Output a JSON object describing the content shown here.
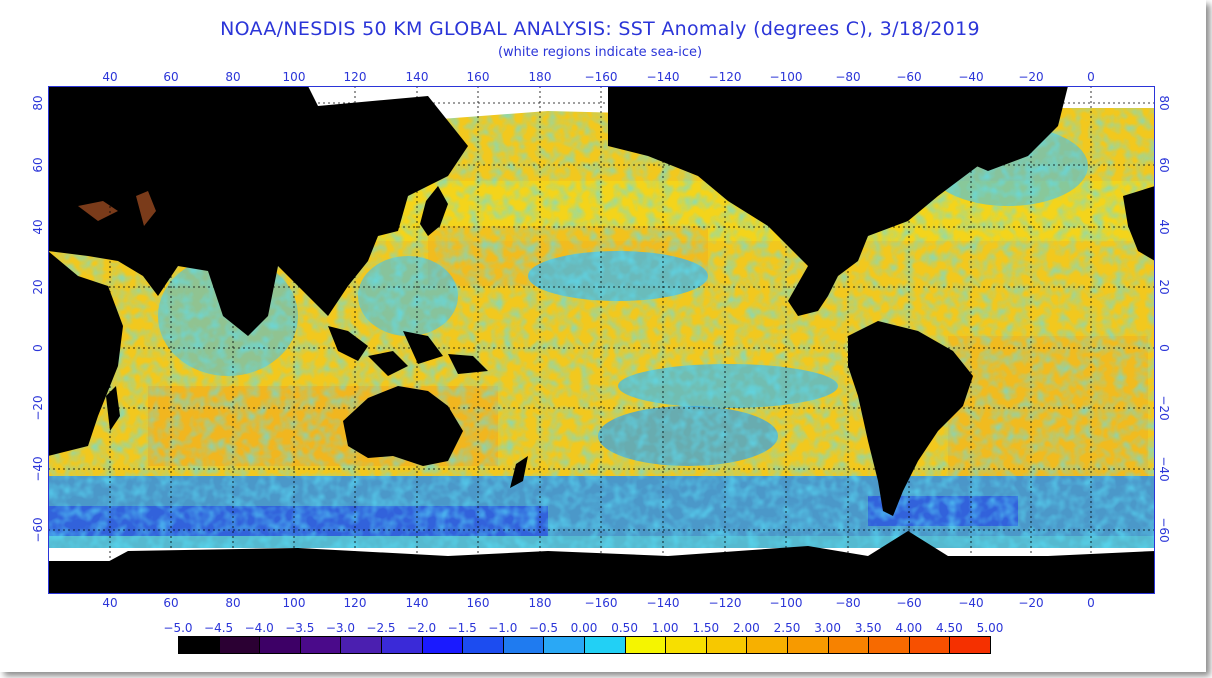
{
  "title": "NOAA/NESDIS 50 KM GLOBAL ANALYSIS: SST Anomaly (degrees C), 3/18/2019",
  "subtitle": "(white regions indicate sea-ice)",
  "lon_ticks": [
    "40",
    "60",
    "80",
    "100",
    "120",
    "140",
    "160",
    "180",
    "−160",
    "−140",
    "−120",
    "−100",
    "−80",
    "−60",
    "−40",
    "−20",
    "0"
  ],
  "lat_ticks": [
    "80",
    "60",
    "40",
    "20",
    "0",
    "−20",
    "−40",
    "−60"
  ],
  "colorbar": {
    "labels": [
      "−5.0",
      "−4.5",
      "−4.0",
      "−3.5",
      "−3.0",
      "−2.5",
      "−2.0",
      "−1.5",
      "−1.0",
      "−0.5",
      "0.00",
      "0.50",
      "1.00",
      "1.50",
      "2.00",
      "2.50",
      "3.00",
      "3.50",
      "4.00",
      "4.50",
      "5.00"
    ],
    "colors": [
      "#000000",
      "#2b0033",
      "#3d0066",
      "#4a0a8a",
      "#4b1fb0",
      "#3a2ad8",
      "#1a1aff",
      "#1c4cf0",
      "#1f7bf0",
      "#2aa8f5",
      "#22d0f5",
      "#f5f500",
      "#f7df00",
      "#f7c800",
      "#f7b000",
      "#f79a00",
      "#f78200",
      "#f76a00",
      "#f75000",
      "#f53000",
      "#f01010"
    ]
  },
  "colors": {
    "text": "#2b35d8",
    "ocean_base": "#f2c81e",
    "land": "#000000",
    "sea_ice": "#ffffff"
  }
}
